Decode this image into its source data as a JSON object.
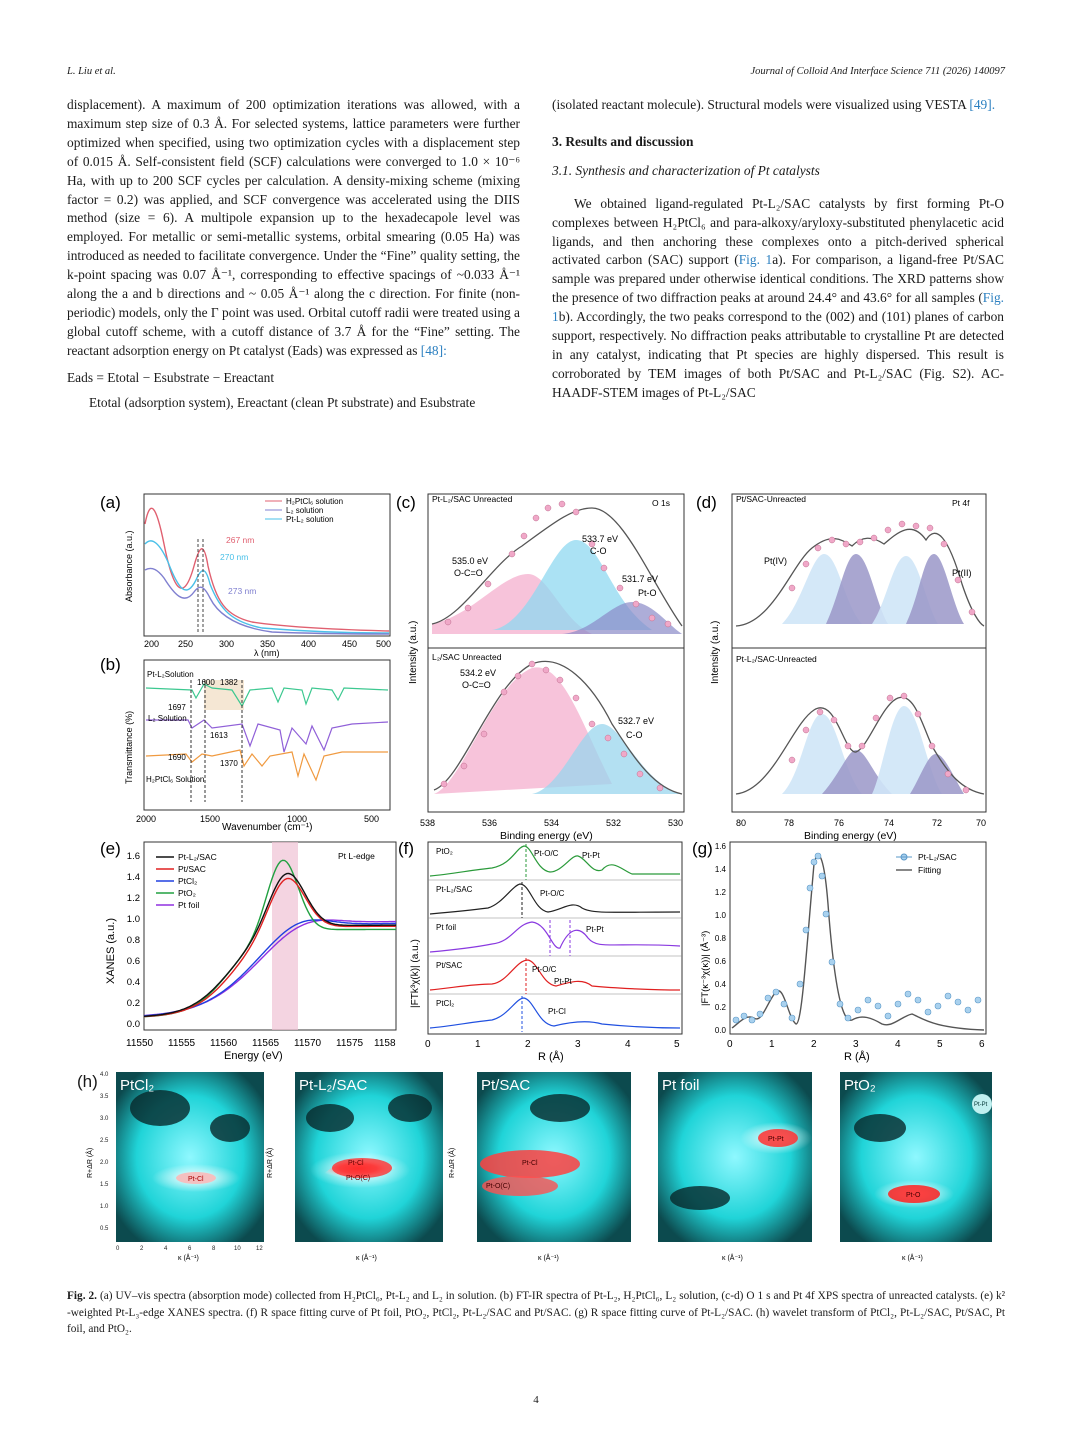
{
  "header": {
    "authors": "L. Liu et al.",
    "journal": "Journal of Colloid And Interface Science 711 (2026) 140097"
  },
  "left_col": {
    "p1": "displacement). A maximum of 200 optimization iterations was allowed, with a maximum step size of 0.3 Å. For selected systems, lattice parameters were further optimized when specified, using two optimization cycles with a displacement step of 0.015 Å. Self-consistent field (SCF) calculations were converged to 1.0 × 10⁻⁶ Ha, with up to 200 SCF cycles per calculation. A density-mixing scheme (mixing factor = 0.2) was applied, and SCF convergence was accelerated using the DIIS method (size = 6). A multipole expansion up to the hexadecapole level was employed. For metallic or semi-metallic systems, orbital smearing (0.05 Ha) was introduced as needed to facilitate convergence. Under the “Fine” quality setting, the k-point spacing was 0.07 Å⁻¹, corresponding to effective spacings of ~0.033 Å⁻¹ along the a and b directions and ~ 0.05 Å⁻¹ along the c direction. For finite (non-periodic) models, only the Γ point was used. Orbital cutoff radii were treated using a global cutoff scheme, with a cutoff distance of 3.7 Å for the “Fine” setting. The reactant adsorption energy on Pt catalyst (Eads) was expressed as",
    "p1_ref": "[48]:",
    "equation": "Eads = Etotal − Esubstrate − Ereactant",
    "p2": "Etotal (adsorption system), Ereactant (clean Pt substrate) and Esubstrate"
  },
  "right_col": {
    "p0": "(isolated reactant molecule). Structural models were visualized using VESTA",
    "p0_ref": "[49].",
    "section": "3.  Results and discussion",
    "subsection": "3.1.  Synthesis and characterization of Pt catalysts",
    "p1a": "We obtained ligand-regulated Pt-L₂/SAC catalysts by first forming Pt-O complexes between H₂PtCl₆ and para-alkoxy/aryloxy-substituted phenylacetic acid ligands, and then anchoring these complexes onto a pitch-derived spherical activated carbon (SAC) support (",
    "ref1": "Fig. 1",
    "p1b": "a). For comparison, a ligand-free Pt/SAC sample was prepared under otherwise identical conditions. The XRD patterns show the presence of two diffraction peaks at around 24.4° and 43.6° for all samples (",
    "ref2": "Fig. 1",
    "p1c": "b). Accordingly, the two peaks correspond to the (002) and (101) planes of carbon support, respectively. No diffraction peaks attributable to crystalline Pt are detected in any catalyst, indicating that Pt species are highly dispersed. This result is corroborated by TEM images of both Pt/SAC and Pt-L₂/SAC (Fig. S2). AC-HAADF-STEM images of Pt-L₂/SAC"
  },
  "figure": {
    "panels": {
      "a": "(a)",
      "b": "(b)",
      "c": "(c)",
      "d": "(d)",
      "e": "(e)",
      "f": "(f)",
      "g": "(g)",
      "h": "(h)"
    },
    "a": {
      "ylabel": "Absorbance (a.u.)",
      "xlabel": "λ (nm)",
      "legend": [
        "H₂PtCl₆ solution",
        "L₂ solution",
        "Pt-L₂ solution"
      ],
      "ann": [
        "267 nm",
        "270 nm",
        "273 nm"
      ],
      "xticks": [
        "200",
        "250",
        "300",
        "350",
        "400",
        "450",
        "500"
      ]
    },
    "b": {
      "ylabel": "Transmittance (%)",
      "xlabel": "Wavenumber (cm⁻¹)",
      "labels": [
        "Pt-L₂Solution",
        "L₂ Solution",
        "H₂PtCl₆ Solution"
      ],
      "ann": [
        "1600",
        "1382",
        "1697",
        "1613",
        "1690",
        "1370"
      ],
      "xticks": [
        "2000",
        "1500",
        "1000",
        "500"
      ]
    },
    "c": {
      "title": "Pt-L₂/SAC Unreacted",
      "tag": "O 1s",
      "title2": "L₂/SAC Unreacted",
      "ylabel": "Intensity (a.u.)",
      "xlabel": "Binding energy (eV)",
      "ann_top": [
        "533.7 eV",
        "C-O",
        "535.0 eV",
        "O-C=O",
        "531.7 eV",
        "Pt-O"
      ],
      "ann_bot": [
        "534.2 eV",
        "O-C=O",
        "532.7 eV",
        "C-O"
      ],
      "xticks": [
        "538",
        "536",
        "534",
        "532",
        "530"
      ]
    },
    "d": {
      "title": "Pt/SAC-Unreacted",
      "tag": "Pt 4f",
      "title2": "Pt-L₂/SAC-Unreacted",
      "ylabel": "Intensity (a.u.)",
      "xlabel": "Binding energy (eV)",
      "ann": [
        "Pt(IV)",
        "Pt(II)"
      ],
      "xticks": [
        "80",
        "78",
        "76",
        "74",
        "72",
        "70"
      ]
    },
    "e": {
      "ylabel": "XANES (a.u.)",
      "xlabel": "Energy (eV)",
      "tag": "Pt L-edge",
      "legend": [
        "Pt-L₂/SAC",
        "Pt/SAC",
        "PtCl₂",
        "PtO₂",
        "Pt foil"
      ],
      "yticks": [
        "0.0",
        "0.2",
        "0.4",
        "0.6",
        "0.8",
        "1.0",
        "1.2",
        "1.4",
        "1.6"
      ],
      "xticks": [
        "11550",
        "11555",
        "11560",
        "11565",
        "11570",
        "11575",
        "1158"
      ],
      "colors": [
        "#111111",
        "#e02020",
        "#2040e0",
        "#20a040",
        "#9030e0"
      ]
    },
    "f": {
      "ylabel": "|FTk³χ(k)| (a.u.)",
      "xlabel": "R (Å)",
      "rows": [
        "PtO₂",
        "Pt-L₂/SAC",
        "Pt foil",
        "Pt/SAC",
        "PtCl₂"
      ],
      "ann": [
        "Pt-O/C",
        "Pt-Pt",
        "Pt-O/C",
        "Pt-Pt",
        "Pt-O/C",
        "Pt-Pt",
        "Pt-Cl"
      ],
      "xticks": [
        "0",
        "1",
        "2",
        "3",
        "4",
        "5"
      ]
    },
    "g": {
      "ylabel": "|FT(κ⁻³χ(κ))| (Å⁻³)",
      "xlabel": "R (Å)",
      "legend": [
        "Pt-L₂/SAC",
        "Fitting"
      ],
      "yticks": [
        "0.0",
        "0.2",
        "0.4",
        "0.6",
        "0.8",
        "1.0",
        "1.2",
        "1.4",
        "1.6"
      ],
      "xticks": [
        "0",
        "1",
        "2",
        "3",
        "4",
        "5",
        "6"
      ]
    },
    "h": {
      "maps": [
        {
          "title": "PtCl₂",
          "labels": [
            "Pt-Cl"
          ]
        },
        {
          "title": "Pt-L₂/SAC",
          "labels": [
            "Pt-Cl",
            "Pt-O(C)"
          ]
        },
        {
          "title": "Pt/SAC",
          "labels": [
            "Pt-Cl",
            "Pt-O(C)"
          ]
        },
        {
          "title": "Pt foil",
          "labels": [
            "Pt-Pt"
          ]
        },
        {
          "title": "PtO₂",
          "labels": [
            "Pt-O",
            "Pt-Pt"
          ]
        }
      ],
      "ylabel": "R+ΔR (Å)",
      "xlabel": "κ (Å⁻¹)",
      "yticks": [
        "4.0",
        "3.5",
        "3.0",
        "2.5",
        "2.0",
        "1.5",
        "1.0",
        "0.5"
      ],
      "xticks": [
        "0",
        "2",
        "4",
        "6",
        "8",
        "10",
        "12"
      ]
    }
  },
  "caption": {
    "label": "Fig. 2.",
    "text": "(a) UV–vis spectra (absorption mode) collected from H₂PtCl₆, Pt-L₂ and L₂ in solution. (b) FT-IR spectra of Pt-L₂, H₂PtCl₆, L₂ solution, (c-d) O 1 s and Pt 4f XPS spectra of unreacted catalysts. (e) k² -weighted Pt-L₃-edge XANES spectra. (f) R space fitting curve of Pt foil, PtO₂, PtCl₂, Pt-L₂/SAC and Pt/SAC. (g) R space fitting curve of Pt-L₂/SAC. (h) wavelet transform of PtCl₂, Pt-L₂/SAC, Pt/SAC, Pt foil, and PtO₂."
  },
  "page_number": "4"
}
